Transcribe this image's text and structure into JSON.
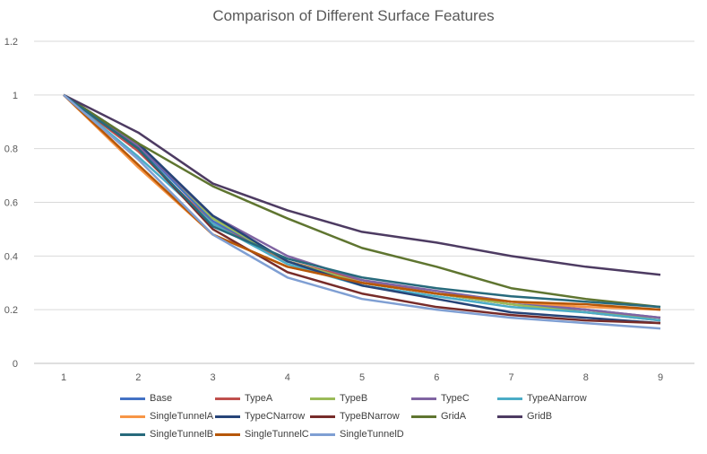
{
  "chart_data": {
    "type": "line",
    "title": "Comparison of Different Surface Features",
    "xlabel": "",
    "ylabel": "",
    "x": [
      1,
      2,
      3,
      4,
      5,
      6,
      7,
      8,
      9
    ],
    "xticks": [
      "1",
      "2",
      "3",
      "4",
      "5",
      "6",
      "7",
      "8",
      "9"
    ],
    "ylim": [
      0,
      1.2
    ],
    "yticks": [
      "0",
      "0.2",
      "0.4",
      "0.6",
      "0.8",
      "1",
      "1.2"
    ],
    "grid": "horizontal",
    "legend_position": "bottom",
    "series": [
      {
        "name": "Base",
        "color": "#4472c4",
        "values": [
          1,
          0.81,
          0.53,
          0.38,
          0.3,
          0.26,
          0.22,
          0.2,
          0.17
        ]
      },
      {
        "name": "TypeA",
        "color": "#c0504d",
        "values": [
          1,
          0.79,
          0.52,
          0.38,
          0.31,
          0.26,
          0.22,
          0.19,
          0.16
        ]
      },
      {
        "name": "TypeB",
        "color": "#9bbb59",
        "values": [
          1,
          0.82,
          0.54,
          0.38,
          0.3,
          0.26,
          0.22,
          0.19,
          0.17
        ]
      },
      {
        "name": "TypeC",
        "color": "#8064a2",
        "values": [
          1,
          0.81,
          0.55,
          0.4,
          0.31,
          0.27,
          0.23,
          0.2,
          0.17
        ]
      },
      {
        "name": "TypeANarrow",
        "color": "#4bacc6",
        "values": [
          1,
          0.77,
          0.52,
          0.37,
          0.29,
          0.25,
          0.21,
          0.19,
          0.16
        ]
      },
      {
        "name": "SingleTunnelA",
        "color": "#f79646",
        "values": [
          1,
          0.73,
          0.48,
          0.36,
          0.3,
          0.26,
          0.23,
          0.21,
          0.2
        ]
      },
      {
        "name": "TypeCNarrow",
        "color": "#264478",
        "values": [
          1,
          0.82,
          0.55,
          0.38,
          0.29,
          0.24,
          0.19,
          0.17,
          0.15
        ]
      },
      {
        "name": "TypeBNarrow",
        "color": "#772c2a",
        "values": [
          1,
          0.8,
          0.5,
          0.34,
          0.26,
          0.21,
          0.18,
          0.16,
          0.15
        ]
      },
      {
        "name": "GridA",
        "color": "#5f7530",
        "values": [
          1,
          0.82,
          0.66,
          0.54,
          0.43,
          0.36,
          0.28,
          0.24,
          0.21
        ]
      },
      {
        "name": "GridB",
        "color": "#4d3b62",
        "values": [
          1,
          0.86,
          0.67,
          0.57,
          0.49,
          0.45,
          0.4,
          0.36,
          0.33
        ]
      },
      {
        "name": "SingleTunnelB",
        "color": "#276a7c",
        "values": [
          1,
          0.8,
          0.51,
          0.39,
          0.32,
          0.28,
          0.25,
          0.23,
          0.21
        ]
      },
      {
        "name": "SingleTunnelC",
        "color": "#b65708",
        "values": [
          1,
          0.74,
          0.48,
          0.36,
          0.3,
          0.26,
          0.23,
          0.22,
          0.2
        ]
      },
      {
        "name": "SingleTunnelD",
        "color": "#7f9fd3",
        "values": [
          1,
          0.76,
          0.48,
          0.32,
          0.24,
          0.2,
          0.17,
          0.15,
          0.13
        ]
      }
    ]
  }
}
